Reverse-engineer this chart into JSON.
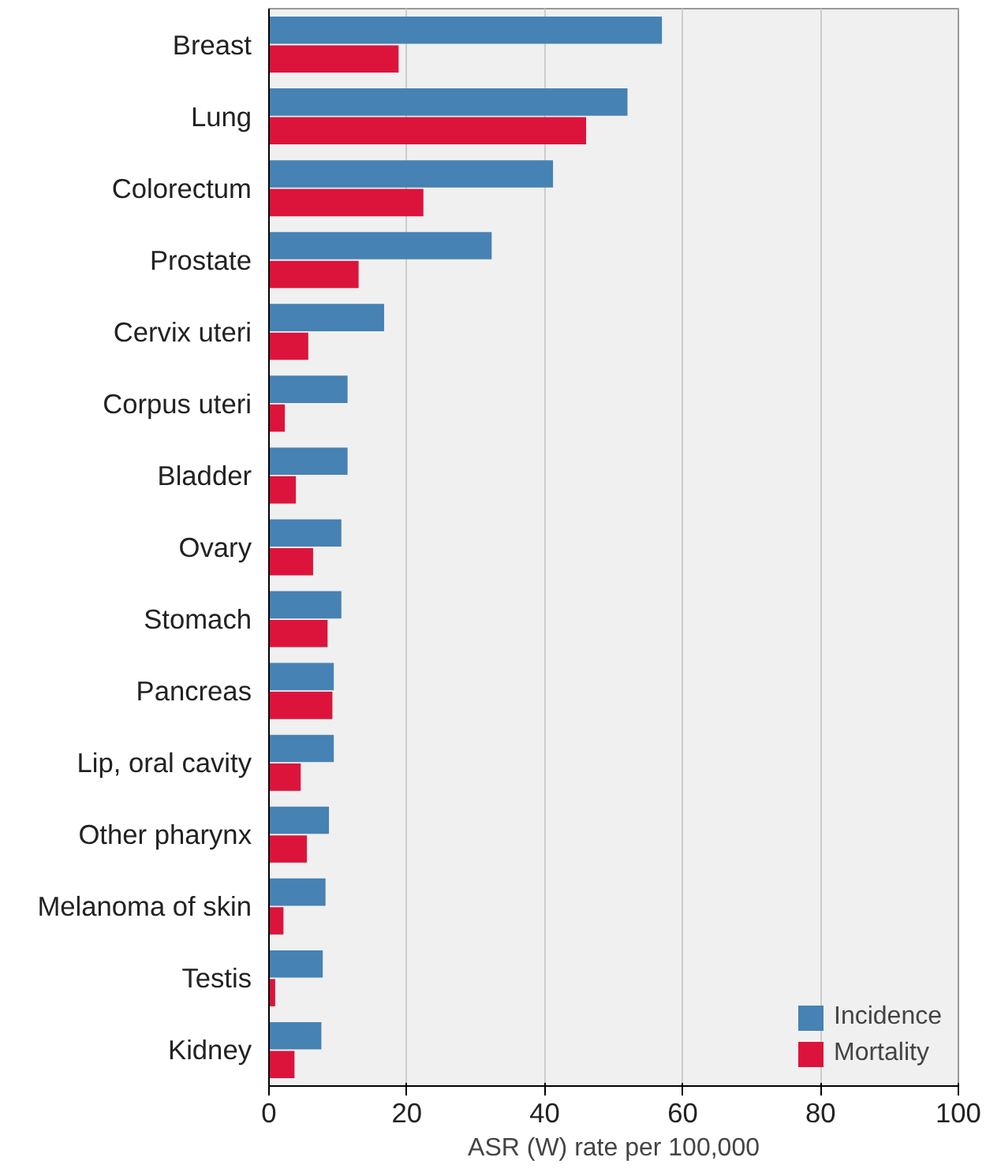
{
  "chart_data": {
    "type": "bar",
    "orientation": "horizontal",
    "xlabel": "ASR (W) rate per 100,000",
    "categories": [
      "Breast",
      "Lung",
      "Colorectum",
      "Prostate",
      "Cervix uteri",
      "Corpus uteri",
      "Bladder",
      "Ovary",
      "Stomach",
      "Pancreas",
      "Lip, oral cavity",
      "Other pharynx",
      "Melanoma of skin",
      "Testis",
      "Kidney"
    ],
    "series": [
      {
        "name": "Incidence",
        "color": "#4682b4",
        "values": [
          57,
          52,
          41.2,
          32.3,
          16.7,
          11.4,
          11.4,
          10.5,
          10.5,
          9.4,
          9.4,
          8.7,
          8.2,
          7.8,
          7.6
        ]
      },
      {
        "name": "Mortality",
        "color": "#dc143c",
        "values": [
          18.8,
          46,
          22.4,
          13,
          5.7,
          2.3,
          3.9,
          6.4,
          8.5,
          9.2,
          4.6,
          5.5,
          2.1,
          0.9,
          3.7
        ]
      }
    ],
    "xlim": [
      0,
      100
    ],
    "xticks": [
      0,
      20,
      40,
      60,
      80,
      100
    ],
    "grid": "x",
    "legend": "bottom right"
  }
}
